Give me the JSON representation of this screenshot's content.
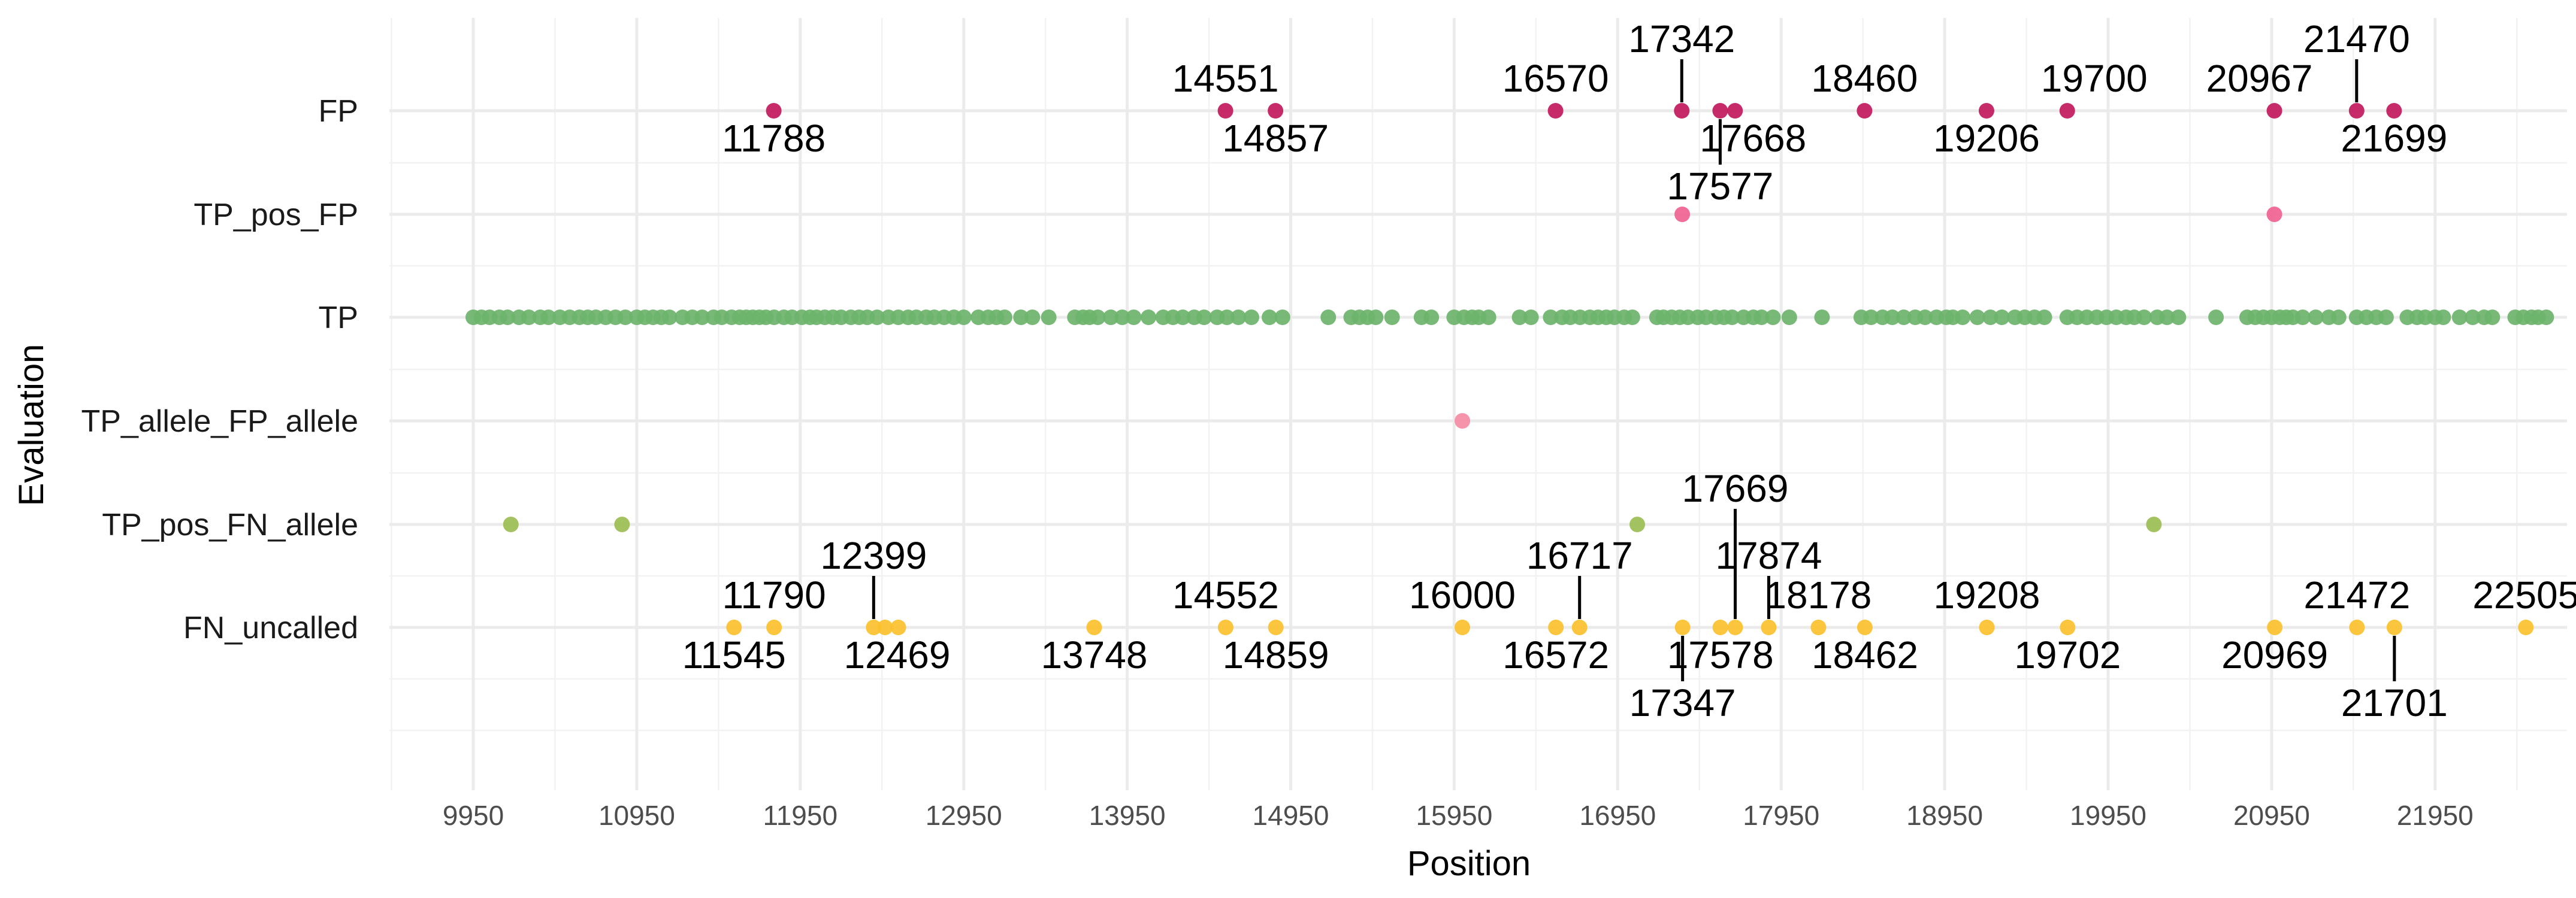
{
  "chart_data": {
    "type": "scatter",
    "xlabel": "Position",
    "ylabel": "Evaluation",
    "xlim": [
      8300,
      23750
    ],
    "x_ticks": [
      9950,
      10950,
      11950,
      12950,
      13950,
      14950,
      15950,
      16950,
      17950,
      18950,
      19950,
      20950,
      21950
    ],
    "categories": [
      "FP",
      "TP_pos_FP",
      "TP",
      "TP_allele_FP_allele",
      "TP_pos_FN_allele",
      "FN_uncalled"
    ],
    "grid": true,
    "legend": "none",
    "colors": {
      "FP": "#c2185b",
      "TP_pos_FP": "#f06292",
      "TP": "#6db36d",
      "TP_allele_FP_allele": "#f48ba3",
      "TP_pos_FN_allele": "#9bbd52",
      "FN_uncalled": "#fbc02d"
    },
    "series": [
      {
        "category": "FP",
        "x": [
          11788,
          14551,
          14857,
          16570,
          17342,
          17577,
          17668,
          18460,
          19206,
          19700,
          20967,
          21470,
          21699
        ],
        "labels": [
          "11788",
          "14551",
          "14857",
          "16570",
          "17342",
          "17577",
          "17668",
          "18460",
          "19206",
          "19700",
          "20967",
          "21470",
          "21699"
        ]
      },
      {
        "category": "TP_pos_FP",
        "x": [
          17345,
          20967
        ],
        "labels": []
      },
      {
        "category": "TP",
        "x": [
          9950,
          10000,
          10050,
          10110,
          10160,
          10230,
          10290,
          10360,
          10410,
          10480,
          10540,
          10600,
          10650,
          10700,
          10760,
          10820,
          10880,
          10950,
          11000,
          11050,
          11100,
          11150,
          11230,
          11290,
          11350,
          11420,
          11470,
          11530,
          11580,
          11620,
          11660,
          11700,
          11740,
          11790,
          11850,
          11900,
          11960,
          12010,
          12050,
          12100,
          12150,
          12200,
          12260,
          12310,
          12360,
          12420,
          12490,
          12550,
          12610,
          12660,
          12720,
          12770,
          12830,
          12890,
          12950,
          13040,
          13100,
          13150,
          13200,
          13300,
          13370,
          13470,
          13630,
          13680,
          13720,
          13770,
          13850,
          13920,
          13990,
          14080,
          14170,
          14230,
          14290,
          14360,
          14420,
          14500,
          14560,
          14630,
          14710,
          14820,
          14900,
          15180,
          15320,
          15370,
          15420,
          15470,
          15570,
          15750,
          15810,
          15950,
          16010,
          16060,
          16100,
          16160,
          16350,
          16420,
          16540,
          16610,
          16660,
          16720,
          16780,
          16830,
          16880,
          16930,
          16990,
          17040,
          17190,
          17230,
          17280,
          17330,
          17380,
          17440,
          17490,
          17550,
          17600,
          17650,
          17720,
          17780,
          17830,
          17900,
          18000,
          18200,
          18440,
          18500,
          18570,
          18630,
          18700,
          18770,
          18830,
          18900,
          18960,
          19000,
          19060,
          19150,
          19230,
          19300,
          19380,
          19440,
          19500,
          19560,
          19700,
          19760,
          19820,
          19880,
          19940,
          20000,
          20060,
          20110,
          20170,
          20250,
          20310,
          20380,
          20610,
          20800,
          20850,
          20900,
          20950,
          21000,
          21040,
          21080,
          21140,
          21220,
          21300,
          21360,
          21470,
          21530,
          21590,
          21650,
          21780,
          21840,
          21890,
          21950,
          22000,
          22100,
          22180,
          22250,
          22300,
          22440,
          22490,
          22540,
          22580,
          22630
        ]
      },
      {
        "category": "TP_allele_FP_allele",
        "x": [
          16000
        ],
        "labels": []
      },
      {
        "category": "TP_pos_FN_allele",
        "x": [
          10180,
          10860,
          17070,
          20230
        ],
        "labels": []
      },
      {
        "category": "FN_uncalled",
        "x": [
          11545,
          11790,
          12399,
          12469,
          12550,
          13748,
          14552,
          14859,
          16000,
          16572,
          16717,
          17347,
          17578,
          17669,
          17874,
          18178,
          18462,
          19208,
          19702,
          20969,
          21472,
          21701,
          22505
        ],
        "labels": [
          "11545",
          "11790",
          "12399",
          "12469",
          "13748",
          "14552",
          "14859",
          "16000",
          "16572",
          "16717",
          "17347",
          "17578",
          "17669",
          "17874",
          "18178",
          "18462",
          "19208",
          "19702",
          "20969",
          "21472",
          "21701",
          "22505"
        ]
      }
    ]
  }
}
